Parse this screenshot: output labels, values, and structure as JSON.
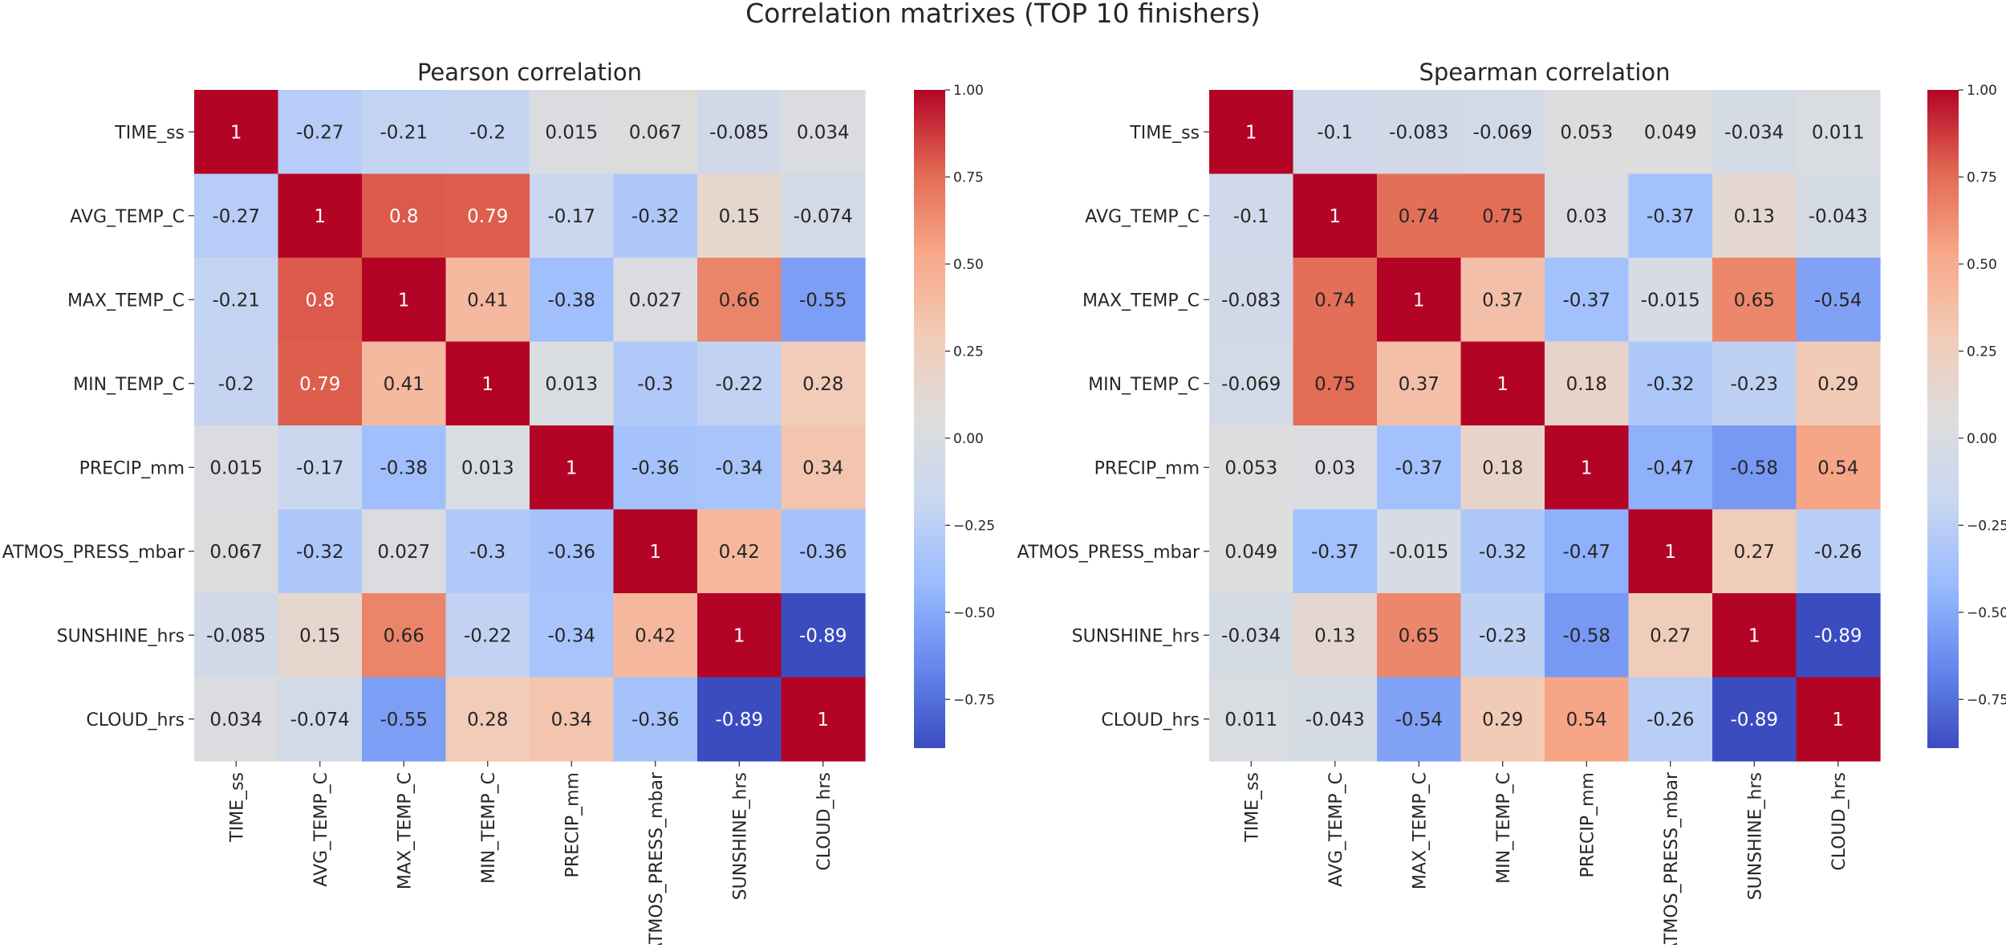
{
  "suptitle": "Correlation matrixes (TOP 10 finishers)",
  "colormap": {
    "name": "coolwarm",
    "range": [
      -0.89,
      1.0
    ],
    "stops": [
      "#3b4cc0",
      "#6788ee",
      "#9abbff",
      "#c9d7f0",
      "#dddddd",
      "#f2cbb7",
      "#f7a889",
      "#e26952",
      "#b40426"
    ]
  },
  "chart_data": [
    {
      "type": "heatmap",
      "title": "Pearson correlation",
      "variables": [
        "TIME_ss",
        "AVG_TEMP_C",
        "MAX_TEMP_C",
        "MIN_TEMP_C",
        "PRECIP_mm",
        "ATMOS_PRESS_mbar",
        "SUNSHINE_hrs",
        "CLOUD_hrs"
      ],
      "values": [
        [
          1,
          -0.27,
          -0.21,
          -0.2,
          0.015,
          0.067,
          -0.085,
          0.034
        ],
        [
          -0.27,
          1,
          0.8,
          0.79,
          -0.17,
          -0.32,
          0.15,
          -0.074
        ],
        [
          -0.21,
          0.8,
          1,
          0.41,
          -0.38,
          0.027,
          0.66,
          -0.55
        ],
        [
          -0.2,
          0.79,
          0.41,
          1,
          0.013,
          -0.3,
          -0.22,
          0.28
        ],
        [
          0.015,
          -0.17,
          -0.38,
          0.013,
          1,
          -0.36,
          -0.34,
          0.34
        ],
        [
          0.067,
          -0.32,
          0.027,
          -0.3,
          -0.36,
          1,
          0.42,
          -0.36
        ],
        [
          -0.085,
          0.15,
          0.66,
          -0.22,
          -0.34,
          0.42,
          1,
          -0.89
        ],
        [
          0.034,
          -0.074,
          -0.55,
          0.28,
          0.34,
          -0.36,
          -0.89,
          1
        ]
      ],
      "colorbar": {
        "ticks": [
          1.0,
          0.75,
          0.5,
          0.25,
          0.0,
          -0.25,
          -0.5,
          -0.75
        ],
        "tick_labels": [
          "1.00",
          "0.75",
          "0.50",
          "0.25",
          "0.00",
          "−0.25",
          "−0.50",
          "−0.75"
        ]
      }
    },
    {
      "type": "heatmap",
      "title": "Spearman correlation",
      "variables": [
        "TIME_ss",
        "AVG_TEMP_C",
        "MAX_TEMP_C",
        "MIN_TEMP_C",
        "PRECIP_mm",
        "ATMOS_PRESS_mbar",
        "SUNSHINE_hrs",
        "CLOUD_hrs"
      ],
      "values": [
        [
          1,
          -0.1,
          -0.083,
          -0.069,
          0.053,
          0.049,
          -0.034,
          0.011
        ],
        [
          -0.1,
          1,
          0.74,
          0.75,
          0.03,
          -0.37,
          0.13,
          -0.043
        ],
        [
          -0.083,
          0.74,
          1,
          0.37,
          -0.37,
          -0.015,
          0.65,
          -0.54
        ],
        [
          -0.069,
          0.75,
          0.37,
          1,
          0.18,
          -0.32,
          -0.23,
          0.29
        ],
        [
          0.053,
          0.03,
          -0.37,
          0.18,
          1,
          -0.47,
          -0.58,
          0.54
        ],
        [
          0.049,
          -0.37,
          -0.015,
          -0.32,
          -0.47,
          1,
          0.27,
          -0.26
        ],
        [
          -0.034,
          0.13,
          0.65,
          -0.23,
          -0.58,
          0.27,
          1,
          -0.89
        ],
        [
          0.011,
          -0.043,
          -0.54,
          0.29,
          0.54,
          -0.26,
          -0.89,
          1
        ]
      ],
      "colorbar": {
        "ticks": [
          1.0,
          0.75,
          0.5,
          0.25,
          0.0,
          -0.25,
          -0.5,
          -0.75
        ],
        "tick_labels": [
          "1.00",
          "0.75",
          "0.50",
          "0.25",
          "0.00",
          "−0.25",
          "−0.50",
          "−0.75"
        ]
      }
    }
  ]
}
